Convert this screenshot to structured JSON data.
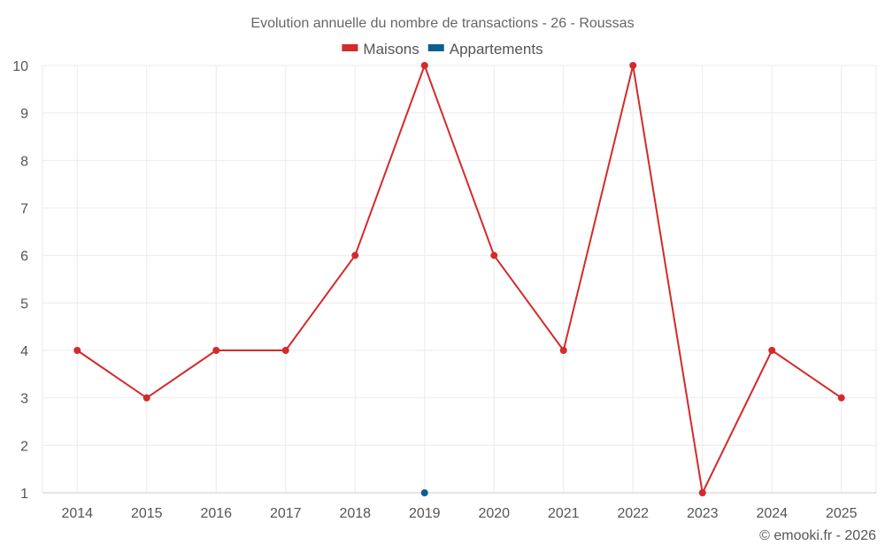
{
  "chart_data": {
    "type": "line",
    "title": "Evolution annuelle du nombre de transactions - 26 - Roussas",
    "categories": [
      "2014",
      "2015",
      "2016",
      "2017",
      "2018",
      "2019",
      "2020",
      "2021",
      "2022",
      "2023",
      "2024",
      "2025"
    ],
    "series": [
      {
        "name": "Maisons",
        "color": "#d42a2a",
        "values": [
          4,
          3,
          4,
          4,
          6,
          10,
          6,
          4,
          10,
          1,
          4,
          3
        ]
      },
      {
        "name": "Appartements",
        "color": "#0a5e94",
        "values": [
          null,
          null,
          null,
          null,
          null,
          1,
          null,
          null,
          null,
          null,
          null,
          null
        ]
      }
    ],
    "ylim": [
      1,
      10
    ],
    "yticks": [
      1,
      2,
      3,
      4,
      5,
      6,
      7,
      8,
      9,
      10
    ],
    "xlabel": "",
    "ylabel": "",
    "legend_position": "top-center",
    "grid": true
  },
  "credit": "© emooki.fr - 2026"
}
